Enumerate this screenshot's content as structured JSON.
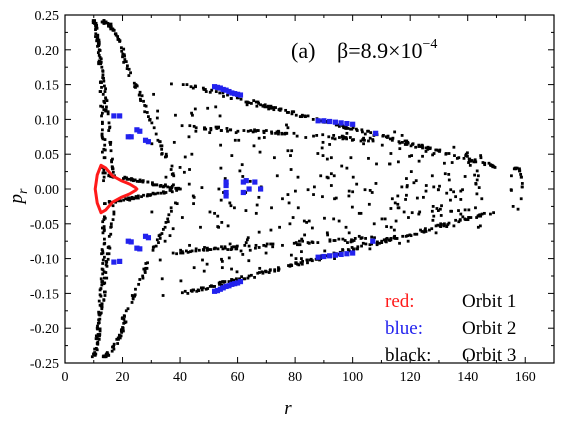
{
  "chart_data": {
    "type": "scatter",
    "title": "",
    "panel_label": "(a)",
    "parameter_label": "β=8.9×10",
    "parameter_exponent": "−4",
    "xlabel": "r",
    "ylabel": "p",
    "ylabel_subscript": "r",
    "xlim": [
      0,
      170
    ],
    "ylim": [
      -0.25,
      0.25
    ],
    "x_ticks": [
      0,
      20,
      40,
      60,
      80,
      100,
      120,
      140,
      160
    ],
    "y_ticks": [
      -0.25,
      -0.2,
      -0.15,
      -0.1,
      -0.05,
      0.0,
      0.05,
      0.1,
      0.15,
      0.2,
      0.25
    ],
    "x_tick_labels": [
      "0",
      "20",
      "40",
      "60",
      "80",
      "100",
      "120",
      "140",
      "160"
    ],
    "y_tick_labels": [
      "-0.25",
      "-0.20",
      "-0.15",
      "-0.10",
      "-0.05",
      "0.00",
      "0.05",
      "0.10",
      "0.15",
      "0.20",
      "0.25"
    ],
    "grid": false,
    "legend_position": "bottom-right",
    "legend": [
      {
        "key": "red:",
        "label": "Orbit 1",
        "color": "#ff1a1a"
      },
      {
        "key": "blue:",
        "label": "Orbit 2",
        "color": "#2222ee"
      },
      {
        "key": "black:",
        "label": "Orbit 3",
        "color": "#000000"
      }
    ],
    "series": [
      {
        "name": "Orbit 1",
        "color": "#ff1a1a",
        "kind": "closed-curve",
        "points": [
          [
            10.5,
            0.0
          ],
          [
            11.2,
            0.02
          ],
          [
            12.5,
            0.034
          ],
          [
            14.2,
            0.03
          ],
          [
            16.5,
            0.019
          ],
          [
            19.5,
            0.012
          ],
          [
            22.5,
            0.007
          ],
          [
            24.5,
            0.002
          ],
          [
            25,
            0.0
          ],
          [
            24.5,
            -0.002
          ],
          [
            22.5,
            -0.007
          ],
          [
            19.5,
            -0.012
          ],
          [
            16.5,
            -0.019
          ],
          [
            14.2,
            -0.03
          ],
          [
            12.5,
            -0.034
          ],
          [
            11.2,
            -0.02
          ],
          [
            10.5,
            0.0
          ]
        ]
      },
      {
        "name": "Orbit 2",
        "color": "#2222ee",
        "kind": "points",
        "points": [
          [
            17,
            0.105
          ],
          [
            19,
            0.105
          ],
          [
            22,
            0.075
          ],
          [
            23,
            0.075
          ],
          [
            25,
            0.085
          ],
          [
            26,
            0.083
          ],
          [
            28,
            0.07
          ],
          [
            29,
            0.068
          ],
          [
            22,
            -0.075
          ],
          [
            23,
            -0.076
          ],
          [
            25,
            -0.085
          ],
          [
            26,
            -0.086
          ],
          [
            28,
            -0.068
          ],
          [
            29,
            -0.07
          ],
          [
            17,
            -0.105
          ],
          [
            19,
            -0.104
          ],
          [
            52,
            0.147
          ],
          [
            53,
            0.146
          ],
          [
            54,
            0.145
          ],
          [
            55,
            0.143
          ],
          [
            56,
            0.142
          ],
          [
            57,
            0.14
          ],
          [
            58,
            0.138
          ],
          [
            59,
            0.137
          ],
          [
            60,
            0.136
          ],
          [
            61,
            0.135
          ],
          [
            52,
            -0.147
          ],
          [
            53,
            -0.146
          ],
          [
            54,
            -0.144
          ],
          [
            55,
            -0.142
          ],
          [
            56,
            -0.14
          ],
          [
            57,
            -0.139
          ],
          [
            58,
            -0.137
          ],
          [
            59,
            -0.136
          ],
          [
            60,
            -0.135
          ],
          [
            61,
            -0.133
          ],
          [
            88,
            0.098
          ],
          [
            90,
            0.098
          ],
          [
            92,
            0.097
          ],
          [
            94,
            0.096
          ],
          [
            96,
            0.095
          ],
          [
            98,
            0.094
          ],
          [
            100,
            0.093
          ],
          [
            88,
            -0.098
          ],
          [
            90,
            -0.097
          ],
          [
            92,
            -0.096
          ],
          [
            94,
            -0.095
          ],
          [
            96,
            -0.094
          ],
          [
            98,
            -0.093
          ],
          [
            100,
            -0.092
          ],
          [
            108,
            0.08
          ],
          [
            107,
            -0.075
          ],
          [
            56,
            0.005
          ],
          [
            56,
            -0.005
          ],
          [
            56,
            -0.01
          ],
          [
            62,
            0.01
          ],
          [
            62,
            -0.005
          ],
          [
            64,
            0.0
          ],
          [
            66,
            0.01
          ],
          [
            68,
            0.0
          ],
          [
            56,
            0.01
          ],
          [
            63,
            0.012
          ]
        ]
      },
      {
        "name": "Orbit 3",
        "color": "#000000",
        "kind": "points",
        "points": []
      }
    ]
  }
}
